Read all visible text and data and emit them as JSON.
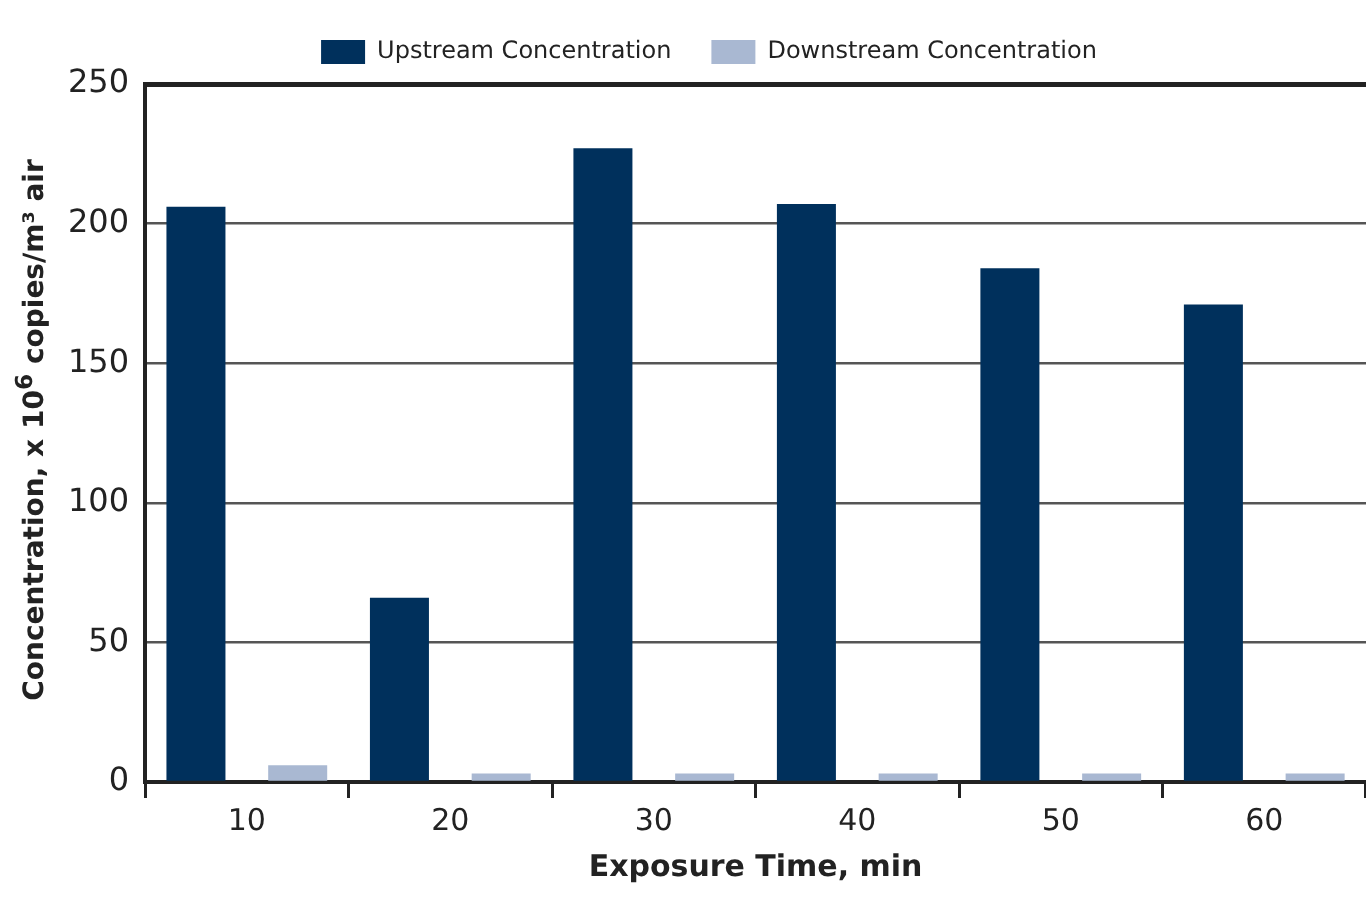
{
  "chart_data": {
    "type": "bar",
    "xlabel": "Exposure Time, min",
    "ylabel": "Concentration, x 10$^{6}$ copies/m³ air",
    "categories": [
      "10",
      "20",
      "30",
      "40",
      "50",
      "60"
    ],
    "series": [
      {
        "name": "Upstream Concentration",
        "color": "#00305c",
        "values": [
          206,
          66,
          227,
          207,
          184,
          171
        ]
      },
      {
        "name": "Downstream Concentration",
        "color": "#a9b8d2",
        "values": [
          6,
          3,
          3,
          3,
          3,
          3
        ]
      }
    ],
    "ylim": [
      0,
      250
    ],
    "yticks": [
      0,
      50,
      100,
      150,
      200,
      250
    ],
    "grid": "y",
    "legend": "top"
  }
}
